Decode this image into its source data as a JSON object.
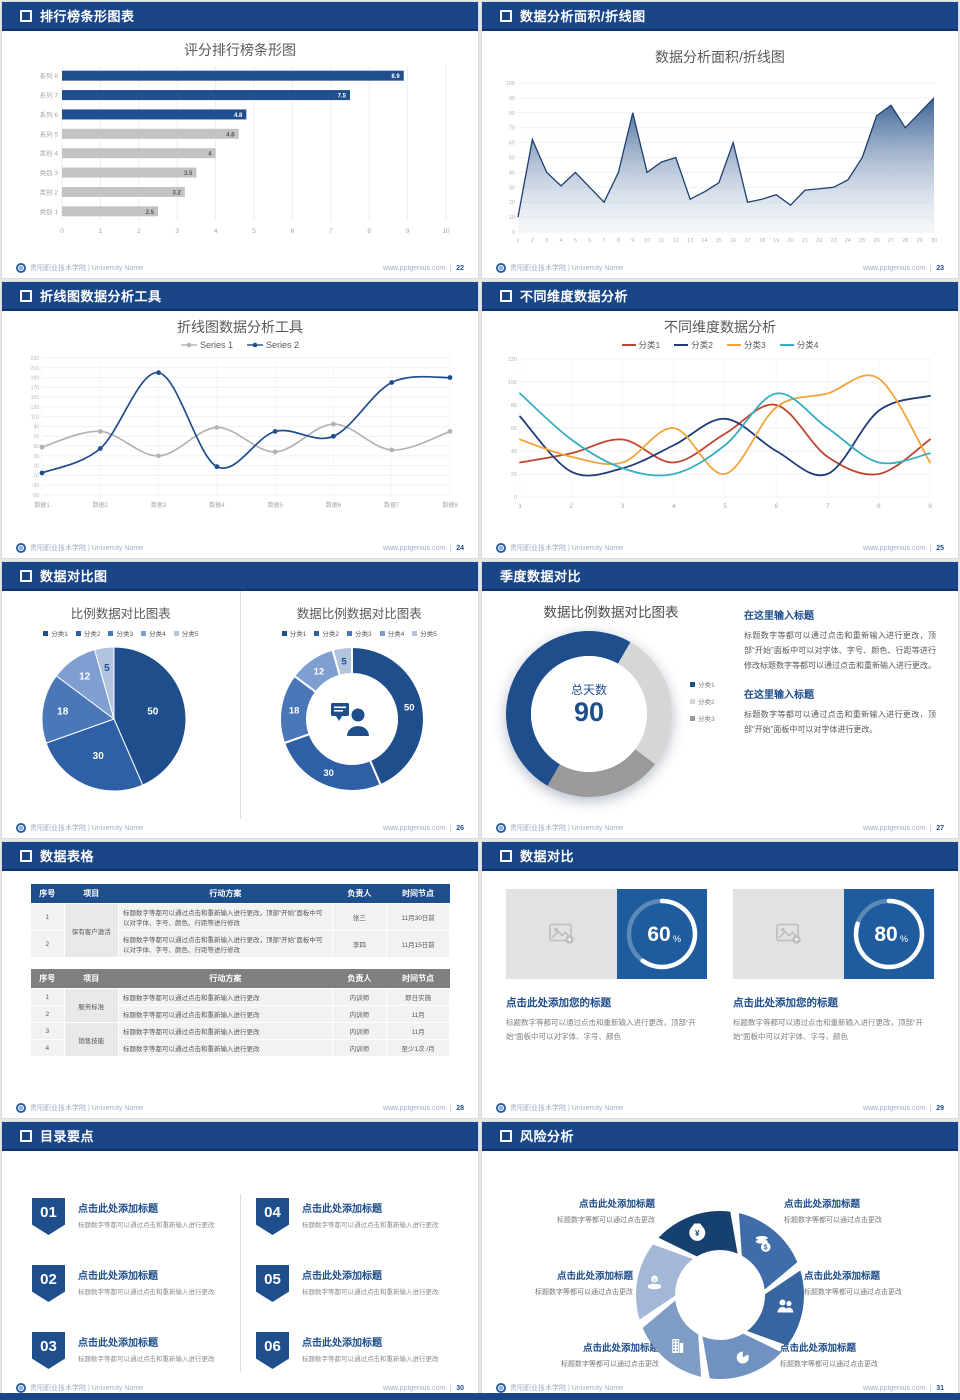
{
  "footer": {
    "school": "贵阳职业技术学院 | University Name",
    "site": "www.pptgenius.com"
  },
  "slides": [
    {
      "header": "排行榜条形图表",
      "page": "22",
      "chart_title": "评分排行榜条形图"
    },
    {
      "header": "数据分析面积/折线图",
      "page": "23",
      "chart_title": "数据分析面积/折线图"
    },
    {
      "header": "折线图数据分析工具",
      "page": "24",
      "chart_title": "折线图数据分析工具"
    },
    {
      "header": "不同维度数据分析",
      "page": "25",
      "chart_title": "不同维度数据分析"
    },
    {
      "header": "数据对比图",
      "page": "26",
      "left_title": "比例数据对比图表",
      "right_title": "数据比例数据对比图表"
    },
    {
      "header": "季度数据对比",
      "page": "27",
      "chart_title": "数据比例数据对比图表",
      "center_label": "总天数",
      "center_value": "90",
      "sections": [
        {
          "title": "在这里输入标题",
          "body": "标题数字等都可以通过点击和重新输入进行更改，顶部“开始”面板中可以对字体、字号、颜色、行距等进行修改标题数字等都可以通过点击和重新输入进行更改。"
        },
        {
          "title": "在这里输入标题",
          "body": "标题数字等都可以通过点击和重新输入进行更改，顶部“开始”面板中可以对字体进行更改。"
        }
      ]
    },
    {
      "header": "数据表格",
      "page": "28",
      "table1": {
        "headers": [
          "序号",
          "项目",
          "行动方案",
          "负责人",
          "时间节点"
        ],
        "group_project": "保有客户激活",
        "rows": [
          {
            "no": "1",
            "plan": "标题数字等都可以通过点击和重新输入进行更改，顶部“开始”面板中可以对字体、字号、颜色、行距等进行修改",
            "owner": "张三",
            "time": "11月30日前"
          },
          {
            "no": "2",
            "plan": "标题数字等都可以通过点击和重新输入进行更改，顶部“开始”面板中可以对字体、字号、颜色、行距等进行修改",
            "owner": "李四",
            "time": "11月15日前"
          }
        ]
      },
      "table2": {
        "headers": [
          "序号",
          "项目",
          "行动方案",
          "负责人",
          "时间节点"
        ],
        "group1_project": "服务标准",
        "group2_project": "销售技能",
        "rows": [
          {
            "no": "1",
            "plan": "标题数字等都可以通过点击和重新输入进行更改",
            "owner": "内训师",
            "time": "即日实施"
          },
          {
            "no": "2",
            "plan": "标题数字等都可以通过点击和重新输入进行更改",
            "owner": "内训师",
            "time": "11月"
          },
          {
            "no": "3",
            "plan": "标题数字等都可以通过点击和重新输入进行更改",
            "owner": "内训师",
            "time": "11月"
          },
          {
            "no": "4",
            "plan": "标题数字等都可以通过点击和重新输入进行更改",
            "owner": "内训师",
            "time": "至少1次 /月"
          }
        ]
      }
    },
    {
      "header": "数据对比",
      "page": "29",
      "cards": [
        {
          "percent": "60",
          "title": "点击此处添加您的标题",
          "body": "标题数字等都可以通过点击和重新输入进行更改，顶部“开始”面板中可以对字体、字号、颜色"
        },
        {
          "percent": "80",
          "title": "点击此处添加您的标题",
          "body": "标题数字等都可以通过点击和重新输入进行更改，顶部“开始”面板中可以对字体、字号、颜色"
        }
      ]
    },
    {
      "header": "目录要点",
      "page": "30",
      "items": [
        {
          "num": "01",
          "title": "点击此处添加标题",
          "desc": "标题数字等都可以通过点击和重新输入进行更改"
        },
        {
          "num": "02",
          "title": "点击此处添加标题",
          "desc": "标题数字等都可以通过点击和重新输入进行更改"
        },
        {
          "num": "03",
          "title": "点击此处添加标题",
          "desc": "标题数字等都可以通过点击和重新输入进行更改"
        },
        {
          "num": "04",
          "title": "点击此处添加标题",
          "desc": "标题数字等都可以通过点击和重新输入进行更改"
        },
        {
          "num": "05",
          "title": "点击此处添加标题",
          "desc": "标题数字等都可以通过点击和重新输入进行更改"
        },
        {
          "num": "06",
          "title": "点击此处添加标题",
          "desc": "标题数字等都可以通过点击和重新输入进行更改"
        }
      ]
    },
    {
      "header": "风险分析",
      "page": "31",
      "labels": [
        {
          "title": "点击此处添加标题",
          "desc": "标题数字等都可以通过点击更改"
        },
        {
          "title": "点击此处添加标题",
          "desc": "标题数字等都可以通过点击更改"
        },
        {
          "title": "点击此处添加标题",
          "desc": "标题数字等都可以通过点击更改"
        },
        {
          "title": "点击此处添加标题",
          "desc": "标题数字等都可以通过点击更改"
        },
        {
          "title": "点击此处添加标题",
          "desc": "标题数字等都可以通过点击更改"
        },
        {
          "title": "点击此处添加标题",
          "desc": "标题数字等都可以通过点击更改"
        }
      ]
    }
  ],
  "chart_data": [
    {
      "id": "bar",
      "type": "bar",
      "title": "评分排行榜条形图",
      "categories": [
        "系列 8",
        "系列 7",
        "系列 6",
        "系列 5",
        "类别 4",
        "类别 3",
        "类别 2",
        "类别 1"
      ],
      "values": [
        8.9,
        7.5,
        4.8,
        4.6,
        4,
        3.5,
        3.2,
        2.5
      ],
      "bar_colors": [
        "#1d4f91",
        "#1d4f91",
        "#1d4f91",
        "#c3c3c3",
        "#c3c3c3",
        "#c3c3c3",
        "#c3c3c3",
        "#c3c3c3"
      ],
      "xlim": [
        0,
        10
      ],
      "xtick": 1,
      "grid": true,
      "legend_position": "none"
    },
    {
      "id": "area",
      "type": "area",
      "title": "数据分析面积/折线图",
      "x": [
        1,
        2,
        3,
        4,
        5,
        6,
        7,
        8,
        9,
        10,
        11,
        12,
        13,
        14,
        15,
        16,
        17,
        18,
        19,
        20,
        21,
        22,
        23,
        24,
        25,
        26,
        27,
        28,
        29,
        30
      ],
      "values": [
        10,
        62,
        40,
        31,
        40,
        30,
        20,
        40,
        80,
        40,
        47,
        50,
        22,
        27,
        33,
        60,
        20,
        22,
        25,
        18,
        28,
        29,
        30,
        35,
        50,
        78,
        85,
        70,
        80,
        90
      ],
      "ylim": [
        0,
        100
      ],
      "ytick": 10,
      "grid": true,
      "line_color": "#1d3f6e",
      "fill_top": "#30598f",
      "fill_bottom": "#dfe6f0"
    },
    {
      "id": "lines2",
      "type": "line",
      "title": "折线图数据分析工具",
      "categories": [
        "数据1",
        "数据2",
        "数据3",
        "数据4",
        "数据5",
        "数据6",
        "数据7",
        "数据8"
      ],
      "series": [
        {
          "name": "Series 1",
          "color": "#b3b3b3",
          "values": [
            48,
            80,
            30,
            88,
            38,
            95,
            42,
            80
          ]
        },
        {
          "name": "Series 2",
          "color": "#1f4e8c",
          "values": [
            -5,
            45,
            200,
            8,
            80,
            70,
            180,
            190
          ]
        }
      ],
      "ylim": [
        -50,
        230
      ],
      "ytick": 20,
      "grid": true,
      "legend_position": "top"
    },
    {
      "id": "lines4",
      "type": "line",
      "title": "不同维度数据分析",
      "x": [
        1,
        2,
        3,
        4,
        5,
        6,
        7,
        8,
        9
      ],
      "series": [
        {
          "name": "分类1",
          "color": "#c0452f",
          "values": [
            30,
            38,
            50,
            30,
            55,
            80,
            35,
            20,
            50
          ]
        },
        {
          "name": "分类2",
          "color": "#1f3d7a",
          "values": [
            70,
            22,
            25,
            45,
            68,
            40,
            20,
            75,
            88
          ]
        },
        {
          "name": "分类3",
          "color": "#f0a53a",
          "values": [
            50,
            35,
            30,
            60,
            20,
            78,
            90,
            103,
            30
          ]
        },
        {
          "name": "分类4",
          "color": "#35aec4",
          "values": [
            90,
            50,
            25,
            20,
            45,
            90,
            60,
            30,
            38
          ]
        }
      ],
      "ylim": [
        0,
        120
      ],
      "ytick": 20,
      "grid": true,
      "legend_position": "top"
    },
    {
      "id": "pie",
      "type": "pie",
      "title": "比例数据对比图表",
      "labels": [
        "分类1",
        "分类2",
        "分类3",
        "分类4",
        "分类5"
      ],
      "values": [
        50,
        30,
        18,
        12,
        5
      ],
      "colors": [
        "#1f4e8c",
        "#2f5fa5",
        "#4a77b8",
        "#7f9fd0",
        "#b3c4de"
      ],
      "legend_position": "top"
    },
    {
      "id": "donut5",
      "type": "donut",
      "title": "数据比例数据对比图表",
      "labels": [
        "分类1",
        "分类2",
        "分类3",
        "分类4",
        "分类5"
      ],
      "values": [
        50,
        30,
        18,
        12,
        5
      ],
      "colors": [
        "#1f4e8c",
        "#2f5fa5",
        "#4a77b8",
        "#7f9fd0",
        "#b3c4de"
      ],
      "legend_position": "top",
      "center_icon": "person-chat"
    },
    {
      "id": "donut3",
      "type": "donut",
      "title": "数据比例数据对比图表",
      "labels": [
        "分类1",
        "分类2",
        "分类3"
      ],
      "values": [
        50,
        27,
        23
      ],
      "colors": [
        "#1f4e8c",
        "#d6d6d6",
        "#9a9a9a"
      ],
      "start_angle": 120,
      "center_label": "总天数",
      "center_value": 90,
      "legend_position": "right"
    },
    {
      "id": "prog60",
      "type": "progress",
      "value": 60,
      "ring_color": "#ffffff",
      "bg": "#1f5c9d"
    },
    {
      "id": "prog80",
      "type": "progress",
      "value": 80,
      "ring_color": "#ffffff",
      "bg": "#1f5c9d"
    },
    {
      "id": "pinwheel",
      "type": "pinwheel",
      "icons": [
        "money-bag",
        "coins",
        "people",
        "pie-chart",
        "building",
        "hand-coin"
      ],
      "colors": [
        "#16406e",
        "#3f6da9",
        "#37659f",
        "#6f92c1",
        "#7f9cc5",
        "#a3b8d6"
      ]
    }
  ]
}
